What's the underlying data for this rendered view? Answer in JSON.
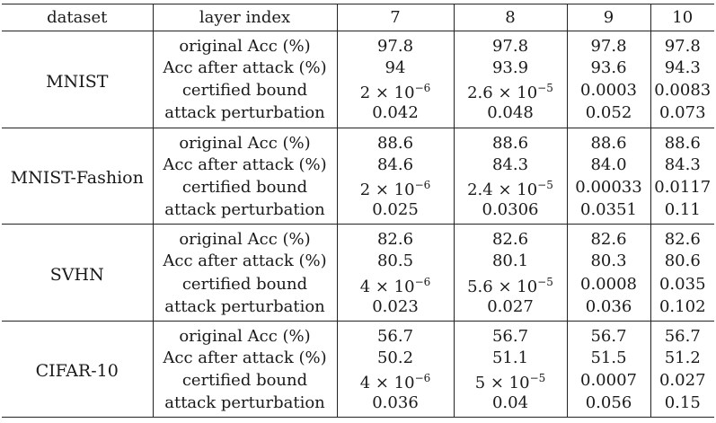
{
  "table": {
    "headers": {
      "dataset": "dataset",
      "layer_index": "layer index",
      "layers": [
        "7",
        "8",
        "9",
        "10"
      ]
    },
    "groups": [
      {
        "dataset": "MNIST",
        "rows": [
          {
            "metric": "original Acc (%)",
            "values": [
              "97.8",
              "97.8",
              "97.8",
              "97.8"
            ]
          },
          {
            "metric": "Acc after attack (%)",
            "values": [
              "94",
              "93.9",
              "93.6",
              "94.3"
            ]
          },
          {
            "metric": "certified bound",
            "values": [
              "2 × 10",
              "2.6 × 10",
              "0.0003",
              "0.0083"
            ],
            "exponents": [
              "−6",
              "−5",
              "",
              ""
            ]
          },
          {
            "metric": "attack perturbation",
            "values": [
              "0.042",
              "0.048",
              "0.052",
              "0.073"
            ]
          }
        ]
      },
      {
        "dataset": "MNIST-Fashion",
        "rows": [
          {
            "metric": "original Acc (%)",
            "values": [
              "88.6",
              "88.6",
              "88.6",
              "88.6"
            ]
          },
          {
            "metric": "Acc after attack (%)",
            "values": [
              "84.6",
              "84.3",
              "84.0",
              "84.3"
            ]
          },
          {
            "metric": "certified bound",
            "values": [
              "2 × 10",
              "2.4 × 10",
              "0.00033",
              "0.0117"
            ],
            "exponents": [
              "−6",
              "−5",
              "",
              ""
            ]
          },
          {
            "metric": "attack perturbation",
            "values": [
              "0.025",
              "0.0306",
              "0.0351",
              "0.11"
            ]
          }
        ]
      },
      {
        "dataset": "SVHN",
        "rows": [
          {
            "metric": "original Acc (%)",
            "values": [
              "82.6",
              "82.6",
              "82.6",
              "82.6"
            ]
          },
          {
            "metric": "Acc after attack (%)",
            "values": [
              "80.5",
              "80.1",
              "80.3",
              "80.6"
            ]
          },
          {
            "metric": "certified bound",
            "values": [
              "4 × 10",
              "5.6 × 10",
              "0.0008",
              "0.035"
            ],
            "exponents": [
              "−6",
              "−5",
              "",
              ""
            ]
          },
          {
            "metric": "attack perturbation",
            "values": [
              "0.023",
              "0.027",
              "0.036",
              "0.102"
            ]
          }
        ]
      },
      {
        "dataset": "CIFAR-10",
        "rows": [
          {
            "metric": "original Acc (%)",
            "values": [
              "56.7",
              "56.7",
              "56.7",
              "56.7"
            ]
          },
          {
            "metric": "Acc after attack (%)",
            "values": [
              "50.2",
              "51.1",
              "51.5",
              "51.2"
            ]
          },
          {
            "metric": "certified bound",
            "values": [
              "4 × 10",
              "5 × 10",
              "0.0007",
              "0.027"
            ],
            "exponents": [
              "−6",
              "−5",
              "",
              ""
            ]
          },
          {
            "metric": "attack perturbation",
            "values": [
              "0.036",
              "0.04",
              "0.056",
              "0.15"
            ]
          }
        ]
      }
    ]
  }
}
